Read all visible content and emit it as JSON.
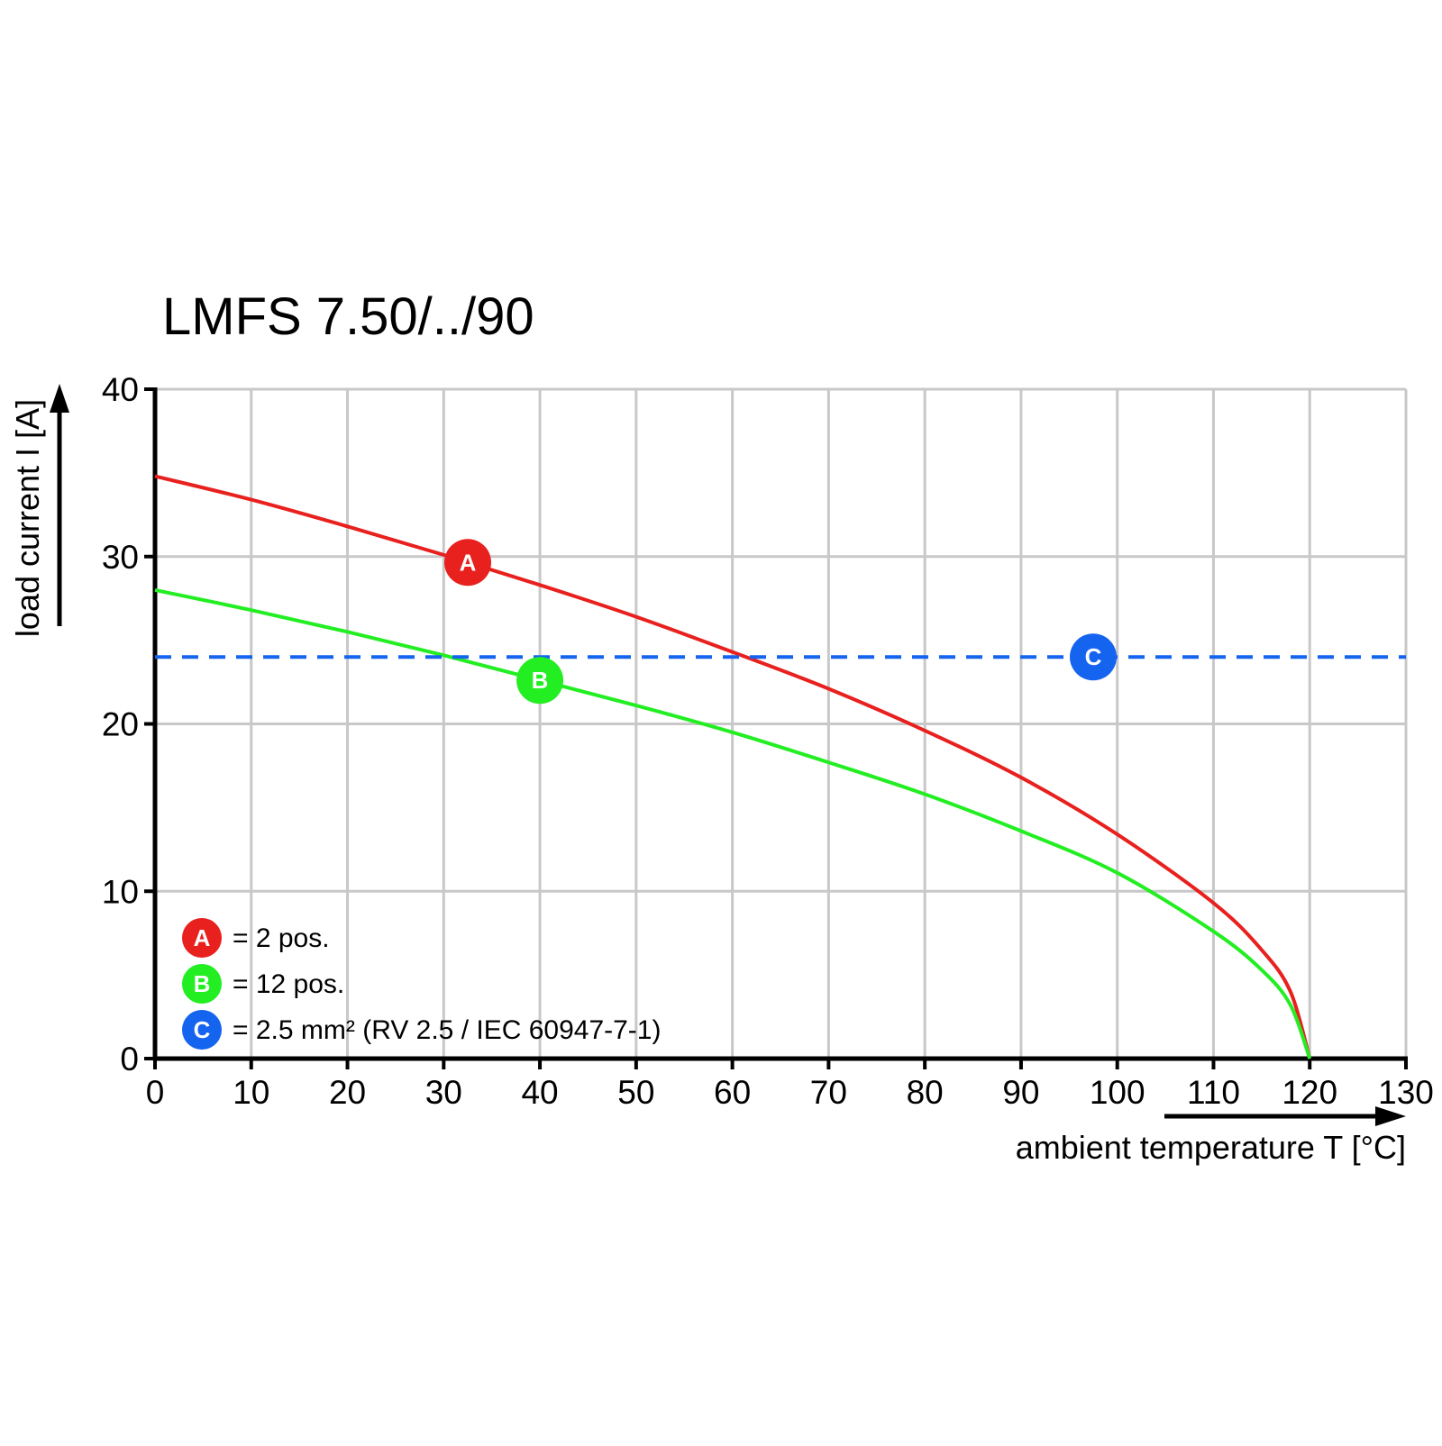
{
  "chart_data": {
    "type": "line",
    "title": "LMFS 7.50/../90",
    "xlabel": "ambient temperature T [°C]",
    "ylabel": "load current I [A]",
    "xlim": [
      0,
      130
    ],
    "ylim": [
      0,
      40
    ],
    "xticks": [
      0,
      10,
      20,
      30,
      40,
      50,
      60,
      70,
      80,
      90,
      100,
      110,
      120,
      130
    ],
    "yticks": [
      0,
      10,
      20,
      30,
      40
    ],
    "grid": true,
    "legend_position": "bottom-left",
    "series": [
      {
        "name": "A",
        "label": "= 2 pos.",
        "color": "#e8201e",
        "style": "solid",
        "marker_x": 32.5,
        "x": [
          0,
          10,
          20,
          30,
          40,
          50,
          60,
          70,
          80,
          90,
          100,
          110,
          115,
          118,
          120
        ],
        "y": [
          34.8,
          33.4,
          31.8,
          30.1,
          28.3,
          26.4,
          24.3,
          22.1,
          19.6,
          16.8,
          13.4,
          9.3,
          6.5,
          4.0,
          0
        ]
      },
      {
        "name": "B",
        "label": "= 12 pos.",
        "color": "#22ee22",
        "style": "solid",
        "marker_x": 40,
        "x": [
          0,
          10,
          20,
          30,
          40,
          50,
          60,
          70,
          80,
          90,
          100,
          110,
          115,
          118,
          120
        ],
        "y": [
          28.0,
          26.8,
          25.5,
          24.1,
          22.6,
          21.1,
          19.5,
          17.7,
          15.8,
          13.6,
          11.1,
          7.6,
          5.3,
          3.2,
          0
        ]
      },
      {
        "name": "C",
        "label": "= 2.5 mm² (RV 2.5 / IEC 60947-7-1)",
        "color": "#1464f0",
        "style": "dashed",
        "marker_x": 97.5,
        "x": [
          0,
          130
        ],
        "y": [
          24,
          24
        ]
      }
    ]
  }
}
